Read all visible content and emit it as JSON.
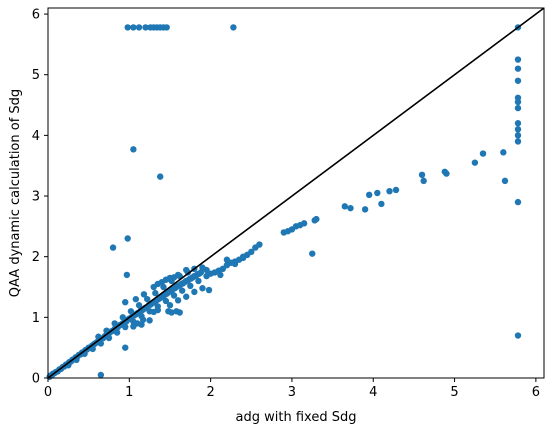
{
  "chart_data": {
    "type": "scatter",
    "xlabel": "adg with fixed Sdg",
    "ylabel": "QAA dynamic calculation of Sdg",
    "xlim": [
      0,
      6.1
    ],
    "ylim": [
      0,
      6.1
    ],
    "xticks": [
      0,
      1,
      2,
      3,
      4,
      5,
      6
    ],
    "yticks": [
      0,
      1,
      2,
      3,
      4,
      5,
      6
    ],
    "grid": false,
    "legend": "none",
    "marker_color": "#1f77b4",
    "reference_line": {
      "type": "identity",
      "x": [
        0,
        6.1
      ],
      "y": [
        0,
        6.1
      ],
      "color": "#000000"
    },
    "series": [
      {
        "points": [
          [
            0.02,
            0.02
          ],
          [
            0.03,
            0.04
          ],
          [
            0.05,
            0.05
          ],
          [
            0.06,
            0.07
          ],
          [
            0.08,
            0.08
          ],
          [
            0.1,
            0.1
          ],
          [
            0.12,
            0.11
          ],
          [
            0.14,
            0.14
          ],
          [
            0.16,
            0.15
          ],
          [
            0.18,
            0.18
          ],
          [
            0.2,
            0.19
          ],
          [
            0.22,
            0.22
          ],
          [
            0.24,
            0.23
          ],
          [
            0.26,
            0.26
          ],
          [
            0.28,
            0.27
          ],
          [
            0.3,
            0.3
          ],
          [
            0.32,
            0.31
          ],
          [
            0.34,
            0.34
          ],
          [
            0.36,
            0.35
          ],
          [
            0.38,
            0.38
          ],
          [
            0.4,
            0.39
          ],
          [
            0.42,
            0.42
          ],
          [
            0.44,
            0.43
          ],
          [
            0.46,
            0.46
          ],
          [
            0.48,
            0.47
          ],
          [
            0.5,
            0.5
          ],
          [
            0.52,
            0.5
          ],
          [
            0.54,
            0.53
          ],
          [
            0.56,
            0.55
          ],
          [
            0.58,
            0.57
          ],
          [
            0.6,
            0.59
          ],
          [
            0.62,
            0.6
          ],
          [
            0.64,
            0.63
          ],
          [
            0.66,
            0.65
          ],
          [
            0.68,
            0.66
          ],
          [
            0.7,
            0.69
          ],
          [
            0.72,
            0.71
          ],
          [
            0.74,
            0.72
          ],
          [
            0.76,
            0.75
          ],
          [
            0.78,
            0.77
          ],
          [
            0.8,
            0.78
          ],
          [
            0.82,
            0.81
          ],
          [
            0.84,
            0.83
          ],
          [
            0.86,
            0.84
          ],
          [
            0.88,
            0.87
          ],
          [
            0.9,
            0.88
          ],
          [
            0.92,
            0.9
          ],
          [
            0.94,
            0.92
          ],
          [
            0.96,
            0.93
          ],
          [
            0.98,
            0.96
          ],
          [
            1.0,
            0.98
          ],
          [
            1.02,
            0.99
          ],
          [
            1.04,
            1.02
          ],
          [
            1.06,
            1.03
          ],
          [
            1.08,
            1.05
          ],
          [
            1.1,
            1.07
          ],
          [
            1.12,
            1.08
          ],
          [
            1.14,
            1.11
          ],
          [
            1.16,
            1.12
          ],
          [
            1.18,
            1.14
          ],
          [
            1.2,
            1.16
          ],
          [
            1.22,
            1.17
          ],
          [
            1.24,
            1.2
          ],
          [
            1.26,
            1.21
          ],
          [
            1.28,
            1.23
          ],
          [
            1.3,
            1.25
          ],
          [
            1.32,
            1.26
          ],
          [
            1.34,
            1.29
          ],
          [
            1.36,
            1.3
          ],
          [
            1.38,
            1.32
          ],
          [
            1.4,
            1.34
          ],
          [
            1.42,
            1.35
          ],
          [
            1.44,
            1.38
          ],
          [
            1.46,
            1.39
          ],
          [
            1.48,
            1.41
          ],
          [
            1.5,
            1.43
          ],
          [
            1.52,
            1.44
          ],
          [
            1.54,
            1.47
          ],
          [
            1.56,
            1.48
          ],
          [
            1.58,
            1.5
          ],
          [
            1.6,
            1.52
          ],
          [
            1.62,
            1.53
          ],
          [
            1.64,
            1.55
          ],
          [
            1.66,
            1.56
          ],
          [
            1.68,
            1.58
          ],
          [
            1.7,
            1.6
          ],
          [
            1.72,
            1.61
          ],
          [
            1.74,
            1.63
          ],
          [
            1.76,
            1.64
          ],
          [
            1.78,
            1.66
          ],
          [
            1.8,
            1.68
          ],
          [
            1.82,
            1.69
          ],
          [
            1.84,
            1.71
          ],
          [
            1.86,
            1.72
          ],
          [
            1.88,
            1.74
          ],
          [
            0.25,
            0.21
          ],
          [
            0.35,
            0.3
          ],
          [
            0.45,
            0.4
          ],
          [
            0.55,
            0.48
          ],
          [
            0.65,
            0.57
          ],
          [
            0.75,
            0.66
          ],
          [
            0.85,
            0.75
          ],
          [
            0.95,
            0.84
          ],
          [
            1.05,
            0.93
          ],
          [
            1.15,
            1.02
          ],
          [
            1.25,
            1.1
          ],
          [
            1.35,
            1.18
          ],
          [
            1.45,
            1.27
          ],
          [
            1.55,
            1.36
          ],
          [
            1.65,
            1.44
          ],
          [
            1.75,
            1.52
          ],
          [
            1.85,
            1.6
          ],
          [
            1.95,
            1.68
          ],
          [
            0.62,
            0.68
          ],
          [
            0.72,
            0.78
          ],
          [
            0.82,
            0.9
          ],
          [
            0.92,
            1.0
          ],
          [
            1.02,
            1.1
          ],
          [
            1.12,
            1.2
          ],
          [
            1.22,
            1.3
          ],
          [
            1.32,
            1.4
          ],
          [
            1.42,
            1.5
          ],
          [
            1.52,
            1.6
          ],
          [
            1.62,
            1.68
          ],
          [
            1.72,
            1.74
          ],
          [
            1.3,
            1.5
          ],
          [
            1.35,
            1.55
          ],
          [
            1.4,
            1.58
          ],
          [
            1.45,
            1.62
          ],
          [
            1.5,
            1.65
          ],
          [
            1.55,
            1.66
          ],
          [
            1.6,
            1.7
          ],
          [
            1.7,
            1.78
          ],
          [
            1.8,
            1.8
          ],
          [
            1.9,
            1.82
          ],
          [
            1.95,
            1.78
          ],
          [
            0.95,
            1.25
          ],
          [
            1.08,
            1.3
          ],
          [
            1.18,
            1.38
          ],
          [
            1.3,
            1.09
          ],
          [
            1.35,
            1.12
          ],
          [
            1.48,
            1.1
          ],
          [
            1.52,
            1.08
          ],
          [
            1.58,
            1.1
          ],
          [
            1.62,
            1.08
          ],
          [
            1.17,
            0.96
          ],
          [
            1.1,
            0.9
          ],
          [
            1.15,
            0.88
          ],
          [
            1.05,
            0.85
          ],
          [
            1.25,
            0.95
          ],
          [
            1.5,
            1.2
          ],
          [
            1.6,
            1.28
          ],
          [
            1.7,
            1.34
          ],
          [
            1.8,
            1.42
          ],
          [
            1.9,
            1.48
          ],
          [
            1.98,
            1.45
          ],
          [
            2.0,
            1.72
          ],
          [
            2.05,
            1.74
          ],
          [
            2.1,
            1.77
          ],
          [
            2.15,
            1.8
          ],
          [
            2.2,
            1.86
          ],
          [
            2.25,
            1.9
          ],
          [
            2.3,
            1.92
          ],
          [
            2.35,
            1.95
          ],
          [
            2.4,
            1.98
          ],
          [
            2.45,
            2.03
          ],
          [
            2.5,
            2.08
          ],
          [
            2.55,
            2.15
          ],
          [
            2.6,
            2.2
          ],
          [
            2.2,
            1.95
          ],
          [
            2.3,
            1.88
          ],
          [
            2.4,
            2.0
          ],
          [
            2.12,
            1.7
          ],
          [
            2.9,
            2.4
          ],
          [
            2.95,
            2.42
          ],
          [
            3.0,
            2.45
          ],
          [
            3.05,
            2.5
          ],
          [
            3.1,
            2.52
          ],
          [
            3.15,
            2.55
          ],
          [
            3.28,
            2.6
          ],
          [
            3.3,
            2.62
          ],
          [
            3.25,
            2.05
          ],
          [
            3.65,
            2.83
          ],
          [
            3.72,
            2.8
          ],
          [
            3.9,
            2.78
          ],
          [
            3.95,
            3.02
          ],
          [
            4.05,
            3.05
          ],
          [
            4.1,
            2.87
          ],
          [
            4.2,
            3.08
          ],
          [
            4.28,
            3.1
          ],
          [
            4.6,
            3.35
          ],
          [
            4.62,
            3.25
          ],
          [
            4.88,
            3.4
          ],
          [
            4.9,
            3.37
          ],
          [
            5.25,
            3.55
          ],
          [
            5.35,
            3.7
          ],
          [
            5.6,
            3.72
          ],
          [
            5.62,
            3.25
          ],
          [
            0.8,
            2.15
          ],
          [
            0.98,
            2.3
          ],
          [
            0.97,
            1.7
          ],
          [
            0.95,
            0.5
          ],
          [
            1.05,
            3.77
          ],
          [
            1.38,
            3.32
          ],
          [
            0.65,
            0.05
          ],
          [
            0.98,
            5.78
          ],
          [
            1.05,
            5.78
          ],
          [
            1.12,
            5.78
          ],
          [
            1.2,
            5.78
          ],
          [
            1.26,
            5.78
          ],
          [
            1.3,
            5.78
          ],
          [
            1.34,
            5.78
          ],
          [
            1.38,
            5.78
          ],
          [
            1.42,
            5.78
          ],
          [
            1.46,
            5.78
          ],
          [
            2.28,
            5.78
          ],
          [
            5.78,
            5.78
          ],
          [
            5.78,
            5.25
          ],
          [
            5.78,
            5.1
          ],
          [
            5.78,
            4.9
          ],
          [
            5.78,
            4.62
          ],
          [
            5.78,
            4.55
          ],
          [
            5.78,
            4.45
          ],
          [
            5.78,
            4.2
          ],
          [
            5.78,
            4.1
          ],
          [
            5.78,
            4.0
          ],
          [
            5.78,
            3.9
          ],
          [
            5.78,
            2.9
          ],
          [
            5.78,
            0.7
          ]
        ]
      }
    ]
  }
}
